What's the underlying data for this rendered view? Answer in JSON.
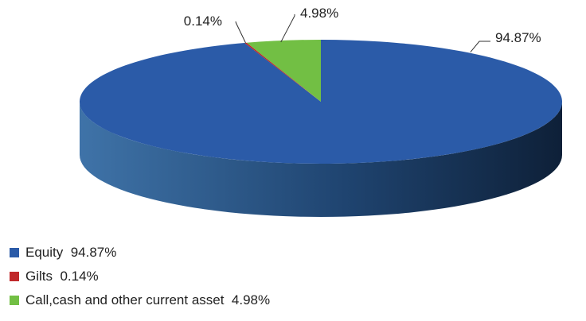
{
  "chart_data": {
    "type": "pie",
    "style": "3d",
    "slices": [
      {
        "label": "Equity",
        "value": 94.87,
        "value_label": "94.87%",
        "color": "#2b5ba8"
      },
      {
        "label": "Gilts",
        "value": 0.14,
        "value_label": "0.14%",
        "color": "#c0282a"
      },
      {
        "label": "Call,cash and other current asset",
        "value": 4.98,
        "value_label": "4.98%",
        "color": "#72bf44"
      }
    ],
    "legend_position": "bottom-left"
  }
}
